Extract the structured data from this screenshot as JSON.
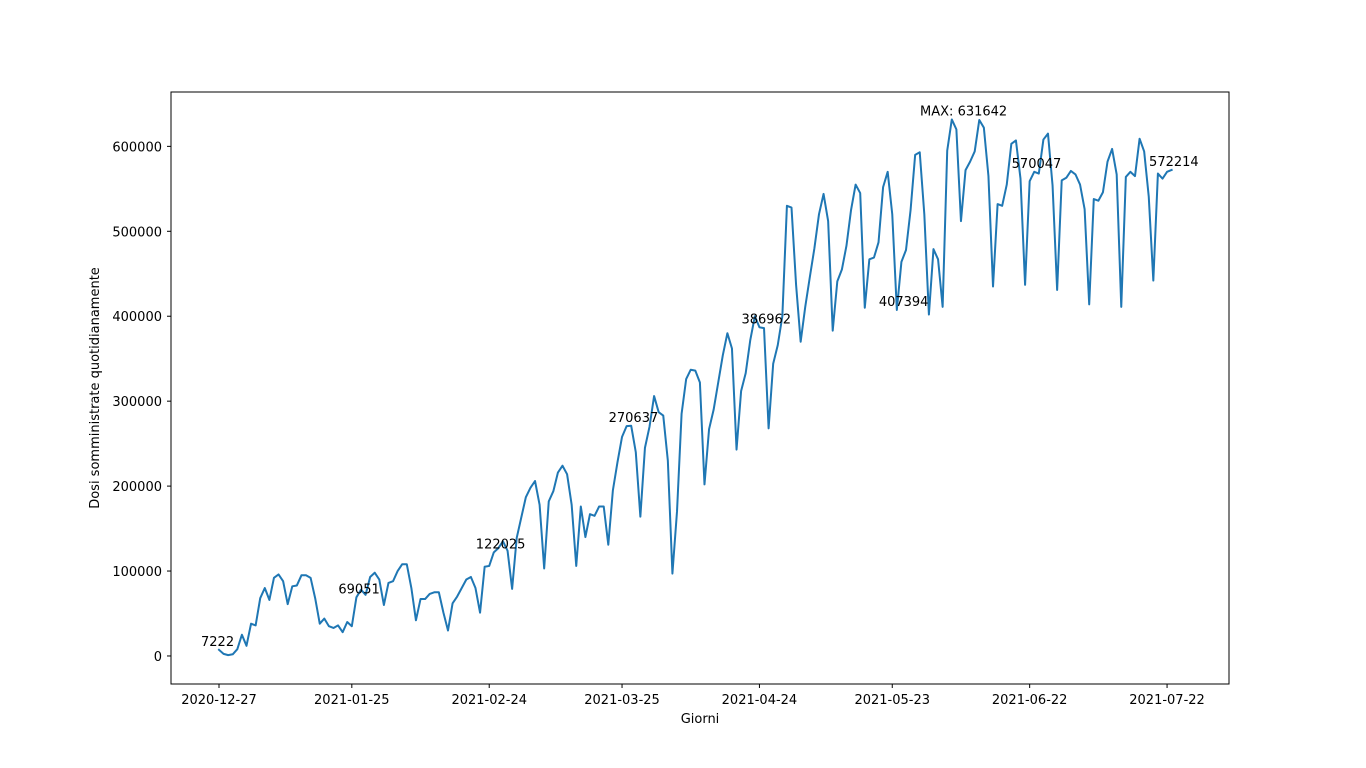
{
  "chart_data": {
    "type": "line",
    "xlabel": "Giorni",
    "ylabel": "Dosi somministrate quotidianamente",
    "x_start": "2020-12-27",
    "ylim": [
      -33000,
      664000
    ],
    "xticks": [
      "2020-12-27",
      "2021-01-25",
      "2021-02-24",
      "2021-03-25",
      "2021-04-24",
      "2021-05-23",
      "2021-06-22",
      "2021-07-22"
    ],
    "yticks": [
      0,
      100000,
      200000,
      300000,
      400000,
      500000,
      600000
    ],
    "ytick_labels": [
      "0",
      "100000",
      "200000",
      "300000",
      "400000",
      "500000",
      "600000"
    ],
    "line_color": "#1f77b4",
    "grid": false,
    "series": [
      {
        "values": [
          7222,
          2500,
          1000,
          2000,
          8000,
          25000,
          12000,
          38000,
          36000,
          68000,
          80000,
          66000,
          92000,
          96000,
          88000,
          61000,
          82000,
          83000,
          95000,
          95000,
          92000,
          68000,
          38000,
          44000,
          35000,
          33000,
          36000,
          28000,
          40000,
          35000,
          69051,
          78000,
          72000,
          93000,
          98000,
          90000,
          60000,
          86000,
          88000,
          100000,
          108000,
          108000,
          80000,
          42000,
          67000,
          67000,
          73000,
          75000,
          75000,
          51000,
          30000,
          62000,
          70000,
          80000,
          90000,
          93000,
          80000,
          51000,
          105000,
          106000,
          122025,
          127000,
          135000,
          124000,
          79000,
          139000,
          163000,
          187000,
          198000,
          206000,
          178000,
          103000,
          182000,
          194000,
          216000,
          224000,
          214000,
          178000,
          106000,
          176000,
          140000,
          167000,
          165000,
          176000,
          176000,
          131000,
          195000,
          228000,
          258000,
          270637,
          271000,
          240000,
          164000,
          245000,
          270000,
          306000,
          287000,
          283000,
          230000,
          97000,
          170000,
          285000,
          326000,
          337000,
          336000,
          322000,
          202000,
          267000,
          290000,
          322000,
          354000,
          380000,
          362000,
          243000,
          312000,
          333000,
          372000,
          400000,
          386962,
          386000,
          268000,
          344000,
          366000,
          400000,
          530000,
          528000,
          437000,
          370000,
          411000,
          446000,
          480000,
          520000,
          544000,
          512000,
          383000,
          441000,
          455000,
          483000,
          525000,
          555000,
          545000,
          410000,
          467000,
          469000,
          487000,
          552000,
          570000,
          520000,
          407394,
          464000,
          478000,
          525000,
          590000,
          593000,
          520000,
          402000,
          479000,
          467000,
          411000,
          595000,
          631642,
          620000,
          512000,
          572000,
          582000,
          594000,
          631000,
          622000,
          565000,
          435000,
          532000,
          530000,
          555000,
          603000,
          607000,
          562000,
          437000,
          559000,
          570047,
          568000,
          608000,
          615000,
          554000,
          431000,
          560000,
          563000,
          571000,
          567000,
          555000,
          526000,
          414000,
          538000,
          536000,
          546000,
          582000,
          597000,
          567000,
          411000,
          564000,
          570000,
          565000,
          609000,
          594000,
          541000,
          442000,
          568000,
          562000,
          570000,
          572214
        ]
      }
    ],
    "annotations": [
      {
        "text": "7222",
        "index": 0,
        "value": 7222
      },
      {
        "text": "69051",
        "index": 30,
        "value": 69051
      },
      {
        "text": "122025",
        "index": 60,
        "value": 122025
      },
      {
        "text": "270637",
        "index": 89,
        "value": 270637
      },
      {
        "text": "386962",
        "index": 118,
        "value": 386962
      },
      {
        "text": "407394",
        "index": 148,
        "value": 407394
      },
      {
        "text": "MAX: 631642",
        "index": 157,
        "value": 631642
      },
      {
        "text": "570047",
        "index": 177,
        "value": 570047
      },
      {
        "text": "572214",
        "index": 207,
        "value": 572214
      }
    ]
  }
}
